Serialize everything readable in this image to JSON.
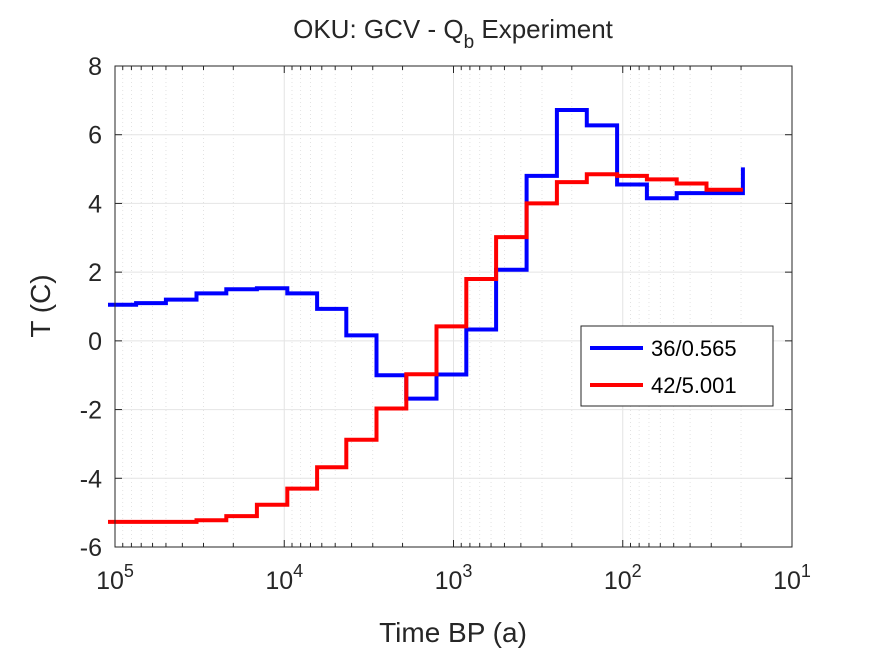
{
  "chart_data": {
    "type": "line",
    "title": {
      "prefix": "OKU: GCV - Q",
      "subscript": "b",
      "suffix": " Experiment"
    },
    "xlabel": "Time BP (a)",
    "ylabel": "T (C)",
    "xscale": "log",
    "x_reversed": true,
    "xlim": [
      100000,
      10
    ],
    "ylim": [
      -6,
      8
    ],
    "grid": true,
    "minor_grid": true,
    "legend_position": "right",
    "xticks": [
      {
        "value": 100000,
        "base": "10",
        "exp": "5"
      },
      {
        "value": 10000,
        "base": "10",
        "exp": "4"
      },
      {
        "value": 1000,
        "base": "10",
        "exp": "3"
      },
      {
        "value": 100,
        "base": "10",
        "exp": "2"
      },
      {
        "value": 10,
        "base": "10",
        "exp": "1"
      }
    ],
    "yticks": [
      {
        "value": 8,
        "label": "8"
      },
      {
        "value": 6,
        "label": "6"
      },
      {
        "value": 4,
        "label": "4"
      },
      {
        "value": 2,
        "label": "2"
      },
      {
        "value": 0,
        "label": "0"
      },
      {
        "value": -2,
        "label": "-2"
      },
      {
        "value": -4,
        "label": "-4"
      },
      {
        "value": -6,
        "label": "-6"
      }
    ],
    "series": [
      {
        "name": "36/0.565",
        "color": "#0000ff",
        "line_style": "stairs",
        "points": [
          {
            "x": 110000,
            "y": 1.05
          },
          {
            "x": 75000,
            "y": 1.1
          },
          {
            "x": 50000,
            "y": 1.2
          },
          {
            "x": 33000,
            "y": 1.38
          },
          {
            "x": 22000,
            "y": 1.5
          },
          {
            "x": 14500,
            "y": 1.53
          },
          {
            "x": 9600,
            "y": 1.38
          },
          {
            "x": 6400,
            "y": 0.93
          },
          {
            "x": 4300,
            "y": 0.16
          },
          {
            "x": 2850,
            "y": -1.0
          },
          {
            "x": 1900,
            "y": -1.68
          },
          {
            "x": 1260,
            "y": -0.98
          },
          {
            "x": 840,
            "y": 0.33
          },
          {
            "x": 560,
            "y": 2.07
          },
          {
            "x": 370,
            "y": 4.8
          },
          {
            "x": 245,
            "y": 6.72
          },
          {
            "x": 163,
            "y": 6.27
          },
          {
            "x": 108,
            "y": 4.55
          },
          {
            "x": 72,
            "y": 4.15
          },
          {
            "x": 48,
            "y": 4.3
          },
          {
            "x": 20,
            "y": 4.3
          },
          {
            "x": 19.5,
            "y": 5.05
          }
        ]
      },
      {
        "name": "42/5.001",
        "color": "#ff0000",
        "line_style": "stairs",
        "points": [
          {
            "x": 110000,
            "y": -5.27
          },
          {
            "x": 33000,
            "y": -5.22
          },
          {
            "x": 22000,
            "y": -5.1
          },
          {
            "x": 14500,
            "y": -4.77
          },
          {
            "x": 9600,
            "y": -4.3
          },
          {
            "x": 6400,
            "y": -3.68
          },
          {
            "x": 4300,
            "y": -2.88
          },
          {
            "x": 2850,
            "y": -1.97
          },
          {
            "x": 1900,
            "y": -0.97
          },
          {
            "x": 1260,
            "y": 0.42
          },
          {
            "x": 840,
            "y": 1.8
          },
          {
            "x": 560,
            "y": 3.02
          },
          {
            "x": 370,
            "y": 4.0
          },
          {
            "x": 245,
            "y": 4.62
          },
          {
            "x": 163,
            "y": 4.85
          },
          {
            "x": 108,
            "y": 4.8
          },
          {
            "x": 72,
            "y": 4.7
          },
          {
            "x": 48,
            "y": 4.58
          },
          {
            "x": 32,
            "y": 4.4
          },
          {
            "x": 19.5,
            "y": 4.4
          }
        ]
      }
    ]
  }
}
